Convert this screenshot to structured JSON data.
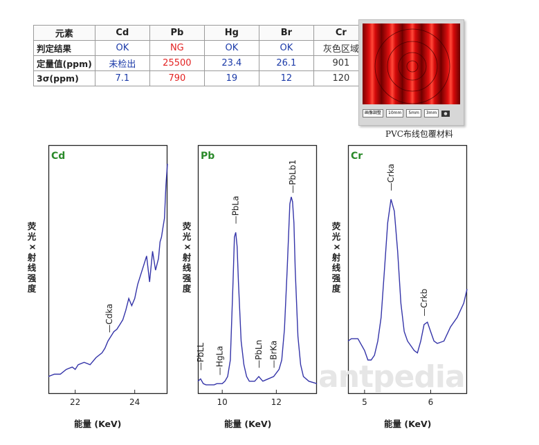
{
  "table": {
    "header": [
      "元素",
      "Cd",
      "Pb",
      "Hg",
      "Br",
      "Cr"
    ],
    "rows": [
      {
        "label": "判定结果",
        "cells": [
          {
            "text": "OK",
            "color": "blue"
          },
          {
            "text": "NG",
            "color": "red"
          },
          {
            "text": "OK",
            "color": "blue"
          },
          {
            "text": "OK",
            "color": "blue"
          },
          {
            "text": "灰色区域",
            "color": "black"
          }
        ]
      },
      {
        "label": "定量值(ppm)",
        "cells": [
          {
            "text": "未检出",
            "color": "blue"
          },
          {
            "text": "25500",
            "color": "red"
          },
          {
            "text": "23.4",
            "color": "blue"
          },
          {
            "text": "26.1",
            "color": "blue"
          },
          {
            "text": "901",
            "color": "black"
          }
        ]
      },
      {
        "label": "3σ(ppm)",
        "cells": [
          {
            "text": "7.1",
            "color": "blue"
          },
          {
            "text": "790",
            "color": "red"
          },
          {
            "text": "19",
            "color": "blue"
          },
          {
            "text": "12",
            "color": "blue"
          },
          {
            "text": "120",
            "color": "black"
          }
        ]
      }
    ]
  },
  "photo": {
    "caption": "PVC布线包覆材料",
    "buttons": [
      "画像調整",
      "10mm",
      "5mm",
      "3mm"
    ],
    "camera_icon": "camera-icon"
  },
  "colors": {
    "line": "#3333a8",
    "panel_label": "#2a8a2a",
    "ok": "#1b3aa8",
    "ng": "#e32222"
  },
  "watermark": "antpedia",
  "chart_data": [
    {
      "type": "line",
      "title": "Cd",
      "ylabel": "荧光X射线强度",
      "xlabel": "能量 (KeV)",
      "xlim": [
        21.1,
        25.1
      ],
      "ylim": [
        0,
        100
      ],
      "xticks": [
        22,
        24
      ],
      "annotations": [
        {
          "label": "Cdka",
          "x": 23.15
        }
      ],
      "series": [
        {
          "x": [
            21.1,
            21.3,
            21.5,
            21.7,
            21.9,
            22.0,
            22.1,
            22.3,
            22.5,
            22.7,
            22.9,
            23.0,
            23.1,
            23.2,
            23.3,
            23.4,
            23.5,
            23.6,
            23.7,
            23.8,
            23.9,
            24.0,
            24.1,
            24.2,
            24.3,
            24.4,
            24.5,
            24.6,
            24.7,
            24.8,
            24.85,
            24.9,
            24.95,
            25.0,
            25.05,
            25.1
          ],
          "y": [
            5,
            6,
            6,
            8,
            9,
            8,
            10,
            11,
            10,
            13,
            15,
            17,
            20,
            22,
            24,
            25,
            27,
            29,
            33,
            38,
            35,
            38,
            44,
            48,
            52,
            56,
            45,
            58,
            50,
            55,
            62,
            64,
            68,
            72,
            86,
            95
          ]
        }
      ]
    },
    {
      "type": "line",
      "title": "Pb",
      "ylabel": "荧光X射线强度",
      "xlabel": "能量 (KeV)",
      "xlim": [
        9.1,
        13.5
      ],
      "ylim": [
        0,
        100
      ],
      "xticks": [
        10,
        12
      ],
      "annotations": [
        {
          "label": "PbLL",
          "x": 9.2
        },
        {
          "label": "HgLa",
          "x": 9.9
        },
        {
          "label": "PbLa",
          "x": 10.5
        },
        {
          "label": "PbLn",
          "x": 11.35
        },
        {
          "label": "BrKa",
          "x": 11.9
        },
        {
          "label": "PbLb1",
          "x": 12.6
        }
      ],
      "series": [
        {
          "x": [
            9.1,
            9.2,
            9.3,
            9.4,
            9.5,
            9.6,
            9.7,
            9.8,
            9.9,
            10.0,
            10.1,
            10.2,
            10.3,
            10.4,
            10.45,
            10.5,
            10.55,
            10.6,
            10.7,
            10.8,
            10.9,
            11.0,
            11.2,
            11.35,
            11.5,
            11.7,
            11.9,
            12.1,
            12.2,
            12.3,
            12.4,
            12.5,
            12.55,
            12.6,
            12.65,
            12.7,
            12.8,
            12.9,
            13.0,
            13.2,
            13.5
          ],
          "y": [
            3,
            4,
            2,
            1.5,
            1.5,
            1.5,
            1.5,
            2,
            2,
            2,
            3,
            5,
            12,
            45,
            64,
            66,
            60,
            45,
            20,
            10,
            5,
            3,
            3,
            5,
            3,
            4,
            5,
            8,
            12,
            25,
            50,
            78,
            81,
            79,
            70,
            50,
            22,
            10,
            5,
            3,
            2
          ]
        }
      ]
    },
    {
      "type": "line",
      "title": "Cr",
      "ylabel": "荧光X射线强度",
      "xlabel": "能量 (KeV)",
      "xlim": [
        4.75,
        6.55
      ],
      "ylim": [
        0,
        100
      ],
      "xticks": [
        5,
        6
      ],
      "annotations": [
        {
          "label": "Crka",
          "x": 5.4
        },
        {
          "label": "Crkb",
          "x": 5.9
        }
      ],
      "series": [
        {
          "x": [
            4.75,
            4.8,
            4.9,
            5.0,
            5.05,
            5.1,
            5.15,
            5.2,
            5.25,
            5.3,
            5.35,
            5.4,
            5.45,
            5.5,
            5.55,
            5.6,
            5.65,
            5.7,
            5.75,
            5.8,
            5.85,
            5.9,
            5.95,
            6.0,
            6.05,
            6.1,
            6.2,
            6.3,
            6.4,
            6.5,
            6.55
          ],
          "y": [
            20,
            21,
            21,
            16,
            12,
            12,
            14,
            20,
            30,
            50,
            70,
            80,
            75,
            58,
            36,
            24,
            20,
            18,
            16,
            15,
            20,
            27,
            28,
            24,
            20,
            19,
            20,
            26,
            30,
            36,
            42
          ]
        }
      ]
    }
  ]
}
